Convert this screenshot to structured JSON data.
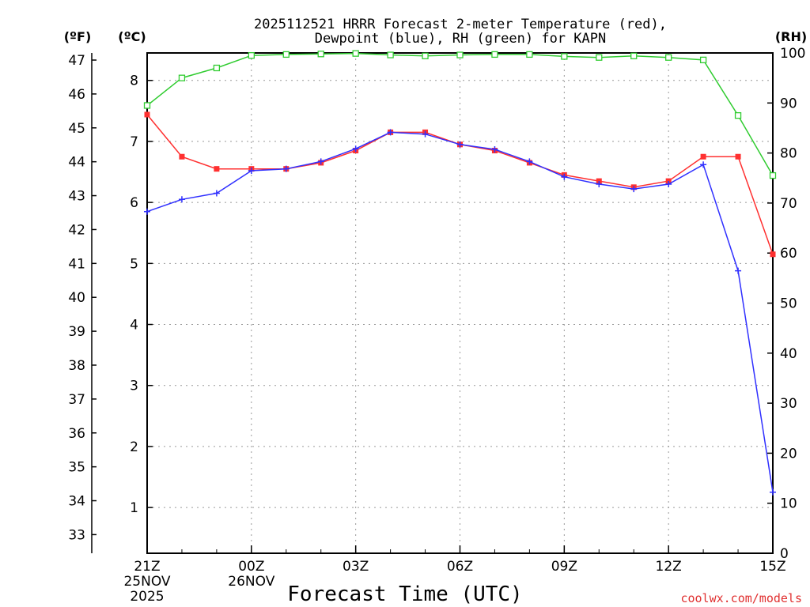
{
  "chart_data": {
    "type": "line",
    "title_line1": "2025112521 HRRR Forecast 2-meter Temperature (red),",
    "title_line2": "Dewpoint (blue), RH (green) for KAPN",
    "xlabel": "Forecast Time (UTC)",
    "credit": "coolwx.com/models",
    "left_outer_unit": "(ºF)",
    "left_inner_unit": "(ºC)",
    "right_unit": "(RH)",
    "x_hours": [
      0,
      1,
      2,
      3,
      4,
      5,
      6,
      7,
      8,
      9,
      10,
      11,
      12,
      13,
      14,
      15,
      16,
      17,
      18
    ],
    "x_ticks": [
      {
        "hour": 0,
        "label": "21Z",
        "sub1": "25NOV",
        "sub2": "2025"
      },
      {
        "hour": 3,
        "label": "00Z",
        "sub1": "26NOV",
        "sub2": ""
      },
      {
        "hour": 6,
        "label": "03Z",
        "sub1": "",
        "sub2": ""
      },
      {
        "hour": 9,
        "label": "06Z",
        "sub1": "",
        "sub2": ""
      },
      {
        "hour": 12,
        "label": "09Z",
        "sub1": "",
        "sub2": ""
      },
      {
        "hour": 15,
        "label": "12Z",
        "sub1": "",
        "sub2": ""
      },
      {
        "hour": 18,
        "label": "15Z",
        "sub1": "",
        "sub2": ""
      }
    ],
    "xlim": [
      0,
      18
    ],
    "celsius_ticks": [
      "1",
      "2",
      "3",
      "4",
      "5",
      "6",
      "7",
      "8"
    ],
    "celsius_lim": [
      0.25,
      8.45
    ],
    "fahrenheit_ticks": [
      "33",
      "34",
      "35",
      "36",
      "37",
      "38",
      "39",
      "40",
      "41",
      "42",
      "43",
      "44",
      "45",
      "46",
      "47"
    ],
    "rh_ticks": [
      "0",
      "10",
      "20",
      "30",
      "40",
      "50",
      "60",
      "70",
      "80",
      "90",
      "100"
    ],
    "rh_lim": [
      0,
      100
    ],
    "series": [
      {
        "name": "Temperature",
        "unit": "C",
        "color": "#ff3030",
        "marker": "filled-square",
        "values": [
          7.44,
          6.75,
          6.55,
          6.55,
          6.55,
          6.65,
          6.85,
          7.15,
          7.15,
          6.95,
          6.85,
          6.65,
          6.45,
          6.35,
          6.25,
          6.35,
          6.75,
          6.75,
          5.15
        ]
      },
      {
        "name": "Dewpoint",
        "unit": "C",
        "color": "#3030ff",
        "marker": "plus",
        "values": [
          5.85,
          6.05,
          6.15,
          6.52,
          6.55,
          6.67,
          6.88,
          7.15,
          7.12,
          6.95,
          6.87,
          6.67,
          6.42,
          6.3,
          6.22,
          6.3,
          6.62,
          4.88,
          1.25
        ]
      },
      {
        "name": "RH",
        "unit": "%",
        "color": "#30cc30",
        "marker": "open-square",
        "values": [
          89.5,
          95.0,
          97.0,
          99.5,
          99.7,
          99.8,
          99.9,
          99.6,
          99.4,
          99.6,
          99.7,
          99.7,
          99.3,
          99.1,
          99.4,
          99.1,
          98.6,
          87.5,
          75.5
        ]
      }
    ]
  }
}
